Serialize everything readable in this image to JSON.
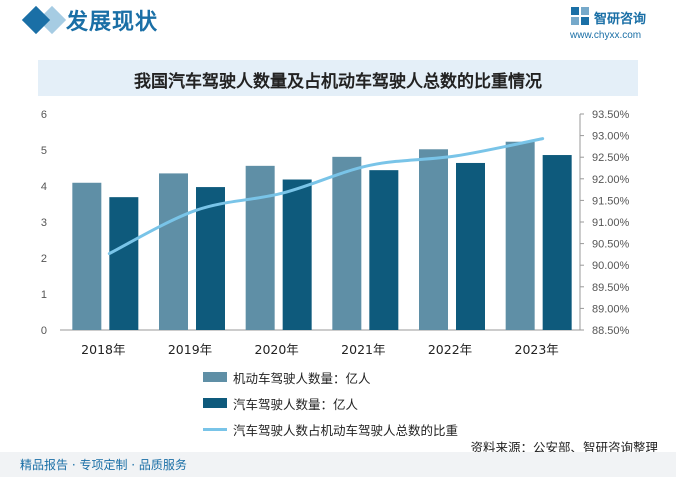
{
  "header": {
    "section_title": "发展现状",
    "brand_name": "智研咨询",
    "brand_url": "www.chyxx.com",
    "brand_color": "#1a6fa6"
  },
  "chart_data": {
    "type": "bar",
    "title": "我国汽车驾驶人数量及占机动车驾驶人总数的比重情况",
    "categories": [
      "2018年",
      "2019年",
      "2020年",
      "2021年",
      "2022年",
      "2023年"
    ],
    "series": [
      {
        "name": "机动车驾驶人数量：亿人",
        "type": "bar",
        "axis": "left",
        "color": "#5f8fa6",
        "values": [
          4.09,
          4.35,
          4.56,
          4.81,
          5.02,
          5.23
        ]
      },
      {
        "name": "汽车驾驶人数量：亿人",
        "type": "bar",
        "axis": "left",
        "color": "#0e5a7c",
        "values": [
          3.69,
          3.97,
          4.18,
          4.44,
          4.64,
          4.86
        ]
      },
      {
        "name": "汽车驾驶人数占机动车驾驶人总数的比重",
        "type": "line",
        "axis": "right",
        "color": "#79c4e8",
        "values": [
          90.27,
          91.27,
          91.67,
          92.31,
          92.53,
          92.93
        ]
      }
    ],
    "left_axis": {
      "min": 0,
      "max": 6,
      "ticks": [
        "0",
        "1",
        "2",
        "3",
        "4",
        "5",
        "6"
      ]
    },
    "right_axis": {
      "min": 88.5,
      "max": 93.5,
      "ticks": [
        "88.50%",
        "89.00%",
        "89.50%",
        "90.00%",
        "90.50%",
        "91.00%",
        "91.50%",
        "92.00%",
        "92.50%",
        "93.00%",
        "93.50%"
      ]
    },
    "grid": false,
    "legend_position": "bottom"
  },
  "source": "资料来源：公安部、智研咨询整理",
  "footer": {
    "text": "精品报告 · 专项定制 · 品质服务"
  }
}
